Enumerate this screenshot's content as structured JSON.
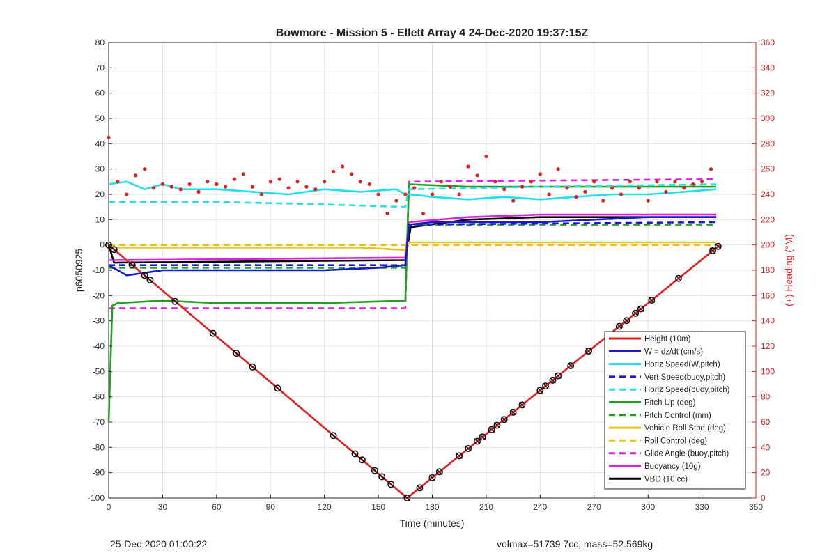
{
  "chart_data": {
    "type": "line",
    "title": "Bowmore - Mission 5 - Ellett Array 4 24-Dec-2020 19:37:15Z",
    "xlabel": "Time (minutes)",
    "ylabel": "p6050925",
    "ylabel_right": "(+) Heading (°M)",
    "xlim": [
      0,
      360
    ],
    "ylim": [
      -100,
      80
    ],
    "ylim_right": [
      0,
      360
    ],
    "x_ticks": [
      "0",
      "30",
      "60",
      "90",
      "120",
      "150",
      "180",
      "210",
      "240",
      "270",
      "300",
      "330",
      "360"
    ],
    "y_ticks": [
      "80",
      "70",
      "60",
      "50",
      "40",
      "30",
      "20",
      "10",
      "0",
      "-10",
      "-20",
      "-30",
      "-40",
      "-50",
      "-60",
      "-70",
      "-80",
      "-90",
      "-100"
    ],
    "y_ticks_right": [
      "360",
      "340",
      "320",
      "300",
      "280",
      "260",
      "240",
      "220",
      "200",
      "180",
      "160",
      "140",
      "120",
      "100",
      "80",
      "60",
      "40",
      "20",
      "0"
    ],
    "grid": true,
    "legend_position": "bottom-right",
    "series": [
      {
        "name": "Height (10m)",
        "color": "#e02020",
        "style": "solid",
        "x": [
          0,
          166,
          340
        ],
        "y": [
          0,
          -100,
          0
        ]
      },
      {
        "name": "W = dz/dt (cm/s)",
        "color": "#1a1acc",
        "style": "solid",
        "x": [
          0,
          10,
          30,
          60,
          90,
          120,
          150,
          165,
          167,
          180,
          210,
          240,
          270,
          300,
          330,
          338
        ],
        "y": [
          -8,
          -12,
          -10,
          -10,
          -10,
          -10,
          -9,
          -8,
          8,
          9,
          9,
          9,
          10,
          11,
          11,
          11
        ]
      },
      {
        "name": "Horiz Speed(W,pitch)",
        "color": "#22e0e8",
        "style": "solid",
        "x": [
          0,
          10,
          20,
          30,
          40,
          60,
          80,
          100,
          120,
          140,
          160,
          165,
          167,
          180,
          200,
          220,
          240,
          260,
          280,
          300,
          320,
          338
        ],
        "y": [
          24,
          25,
          22,
          24,
          22,
          22,
          21,
          20,
          22,
          21,
          22,
          20,
          20,
          19,
          18,
          19,
          18,
          19,
          20,
          20,
          21,
          22
        ]
      },
      {
        "name": "Vert Speed(buoy,pitch)",
        "color": "#1a1acc",
        "style": "dashed",
        "x": [
          0,
          165,
          167,
          338
        ],
        "y": [
          -8,
          -8,
          8,
          9
        ]
      },
      {
        "name": "Horiz Speed(buoy,pitch)",
        "color": "#22e0e8",
        "style": "dashed",
        "x": [
          0,
          60,
          120,
          165,
          167,
          240,
          338
        ],
        "y": [
          17,
          17,
          16,
          15,
          22,
          23,
          24
        ]
      },
      {
        "name": "Pitch Up (deg)",
        "color": "#22a022",
        "style": "solid",
        "x": [
          0,
          2,
          5,
          30,
          60,
          120,
          165,
          167,
          200,
          260,
          338
        ],
        "y": [
          -70,
          -24,
          -23,
          -22,
          -23,
          -23,
          -22,
          24,
          23,
          23,
          23
        ]
      },
      {
        "name": "Pitch Control (mm)",
        "color": "#22a022",
        "style": "dashed",
        "x": [
          0,
          165,
          167,
          338
        ],
        "y": [
          -9,
          -9,
          8,
          8
        ]
      },
      {
        "name": "Vehicle Roll Stbd (deg)",
        "color": "#e6c419",
        "style": "solid",
        "x": [
          0,
          20,
          60,
          100,
          140,
          165,
          167,
          210,
          260,
          300,
          338
        ],
        "y": [
          -1,
          -1,
          -1,
          -1,
          -1,
          -2,
          1,
          1,
          1,
          1,
          1
        ]
      },
      {
        "name": "Roll Control (deg)",
        "color": "#e6c419",
        "style": "dashed",
        "x": [
          0,
          165,
          167,
          338
        ],
        "y": [
          0,
          0,
          0,
          0
        ]
      },
      {
        "name": "Glide Angle (buoy,pitch)",
        "color": "#e020e0",
        "style": "dashed",
        "x": [
          0,
          165,
          167,
          338
        ],
        "y": [
          -25,
          -25,
          25,
          26
        ]
      },
      {
        "name": "Buoyancy (10g)",
        "color": "#e020e0",
        "style": "solid",
        "x": [
          0,
          165,
          167,
          200,
          240,
          338
        ],
        "y": [
          -6,
          -5,
          9,
          11,
          12,
          12
        ]
      },
      {
        "name": "VBD (10 cc)",
        "color": "#000000",
        "style": "solid",
        "x": [
          0,
          3,
          165,
          168,
          200,
          240,
          338
        ],
        "y": [
          0,
          -7,
          -6,
          7,
          10,
          11,
          11
        ]
      }
    ],
    "heading_points": {
      "name": "Heading",
      "color": "#e02020",
      "x": [
        0,
        5,
        10,
        15,
        20,
        25,
        30,
        35,
        40,
        45,
        50,
        55,
        60,
        65,
        70,
        75,
        80,
        85,
        90,
        95,
        100,
        105,
        110,
        115,
        120,
        125,
        130,
        135,
        140,
        145,
        150,
        155,
        160,
        165,
        170,
        175,
        180,
        185,
        190,
        195,
        200,
        205,
        210,
        215,
        220,
        225,
        230,
        235,
        240,
        245,
        250,
        255,
        260,
        265,
        270,
        275,
        280,
        285,
        290,
        295,
        300,
        305,
        310,
        315,
        320,
        325,
        330,
        335
      ],
      "y": [
        285,
        250,
        240,
        255,
        260,
        245,
        248,
        246,
        244,
        248,
        242,
        250,
        248,
        246,
        252,
        256,
        246,
        240,
        250,
        252,
        245,
        250,
        246,
        244,
        250,
        258,
        262,
        256,
        250,
        248,
        240,
        225,
        235,
        240,
        245,
        225,
        240,
        250,
        246,
        240,
        262,
        255,
        270,
        250,
        244,
        235,
        246,
        250,
        256,
        240,
        260,
        245,
        238,
        242,
        250,
        235,
        245,
        240,
        250,
        245,
        235,
        250,
        242,
        250,
        245,
        248,
        250,
        260
      ]
    },
    "annotations": [
      "25-Dec-2020 01:00:22",
      "volmax=51739.7cc, mass=52.569kg"
    ]
  }
}
